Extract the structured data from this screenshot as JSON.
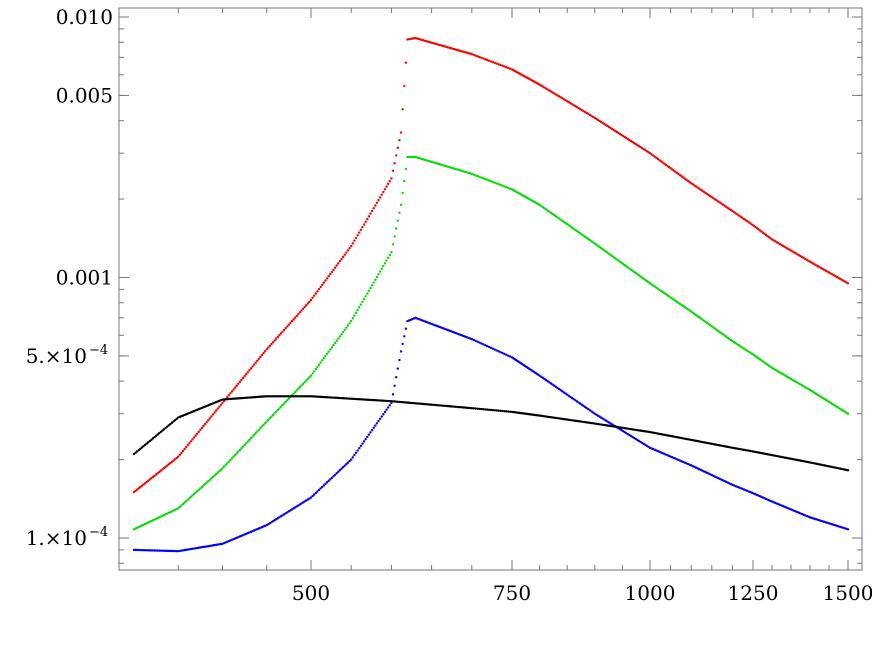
{
  "chart_data": {
    "type": "scatter",
    "title": "",
    "xlabel": "",
    "ylabel": "",
    "yscale": "log",
    "x_scale_note": "x axis ticks at 500, 750, 1000, 1250, 1500 (nonlinear spacing)",
    "xlim": [
      300,
      1500
    ],
    "ylim": [
      8e-05,
      0.0115
    ],
    "grid": false,
    "legend": "none",
    "x_ticks": [
      {
        "value": 500,
        "label": "500"
      },
      {
        "value": 750,
        "label": "750"
      },
      {
        "value": 1000,
        "label": "1000"
      },
      {
        "value": 1250,
        "label": "1250"
      },
      {
        "value": 1500,
        "label": "1500"
      }
    ],
    "y_ticks": [
      {
        "value": 0.01,
        "label": "0.010"
      },
      {
        "value": 0.005,
        "label": "0.005"
      },
      {
        "value": 0.001,
        "label": "0.001"
      },
      {
        "value": 0.0005,
        "label": "5.×10",
        "exp": "−4"
      },
      {
        "value": 0.0001,
        "label": "1.×10",
        "exp": "−4"
      }
    ],
    "series": [
      {
        "color": "#ff0000",
        "x": [
          300,
          350,
          400,
          450,
          500,
          550,
          600,
          612,
          620,
          630,
          700,
          800,
          900,
          1000,
          1100,
          1200,
          1300,
          1400,
          1500
        ],
        "y": [
          0.00015,
          0.000205,
          0.00033,
          0.00053,
          0.00082,
          0.00132,
          0.0024,
          0.0036,
          0.0082,
          0.0083,
          0.0072,
          0.0055,
          0.0041,
          0.003,
          0.0023,
          0.0018,
          0.0014,
          0.00115,
          0.00095
        ]
      },
      {
        "color": "#00dd00",
        "x": [
          300,
          350,
          400,
          450,
          500,
          550,
          600,
          612,
          620,
          630,
          700,
          800,
          900,
          1000,
          1100,
          1200,
          1300,
          1400,
          1500
        ],
        "y": [
          0.000108,
          0.00013,
          0.000185,
          0.00028,
          0.00042,
          0.00068,
          0.00125,
          0.0019,
          0.0029,
          0.0029,
          0.0025,
          0.0019,
          0.00135,
          0.00095,
          0.00074,
          0.00057,
          0.00045,
          0.00037,
          0.0003
        ]
      },
      {
        "color": "#0000ff",
        "x": [
          300,
          350,
          400,
          450,
          500,
          550,
          600,
          612,
          620,
          630,
          700,
          800,
          900,
          1000,
          1100,
          1200,
          1300,
          1400,
          1500
        ],
        "y": [
          9e-05,
          8.9e-05,
          9.5e-05,
          0.000112,
          0.000143,
          0.0002,
          0.00033,
          0.00052,
          0.00068,
          0.0007,
          0.00058,
          0.00042,
          0.0003,
          0.000222,
          0.00019,
          0.00016,
          0.000138,
          0.00012,
          0.000108
        ]
      },
      {
        "color": "#000000",
        "x": [
          300,
          350,
          400,
          450,
          500,
          600,
          700,
          800,
          900,
          1000,
          1100,
          1200,
          1300,
          1400,
          1500
        ],
        "y": [
          0.00021,
          0.00029,
          0.00034,
          0.00035,
          0.00035,
          0.000335,
          0.000315,
          0.000295,
          0.000275,
          0.000255,
          0.000238,
          0.000222,
          0.000208,
          0.000195,
          0.000182
        ]
      }
    ]
  }
}
